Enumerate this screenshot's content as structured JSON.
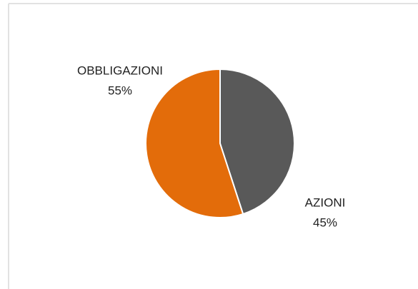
{
  "chart_data": {
    "type": "pie",
    "categories": [
      "AZIONI",
      "OBBLIGAZIONI"
    ],
    "values": [
      45,
      55
    ],
    "value_labels": [
      "45%",
      "55%"
    ],
    "colors": [
      "#595959",
      "#e36c0a"
    ]
  }
}
